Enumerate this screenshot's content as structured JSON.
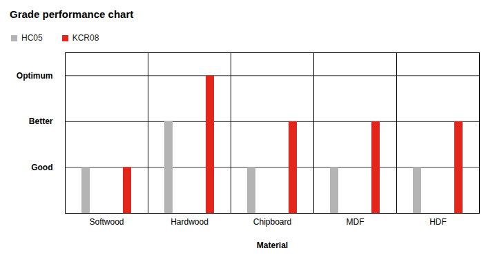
{
  "chart_data": {
    "type": "bar",
    "title": "Grade performance chart",
    "x_label": "Material",
    "categories": [
      "Softwood",
      "Hardwood",
      "Chipboard",
      "MDF",
      "HDF"
    ],
    "series": [
      {
        "name": "HC05",
        "color": "#b4b4b4",
        "values": [
          2,
          4,
          2,
          2,
          2
        ]
      },
      {
        "name": "KCR08",
        "color": "#e3261b",
        "values": [
          2,
          6,
          4,
          4,
          4
        ]
      }
    ],
    "ylim": [
      0,
      7
    ],
    "yticks": [
      {
        "value": 2,
        "label": "Good"
      },
      {
        "value": 4,
        "label": "Better"
      },
      {
        "value": 6,
        "label": "Optimum"
      }
    ],
    "grid": true,
    "legend": "top-left"
  }
}
